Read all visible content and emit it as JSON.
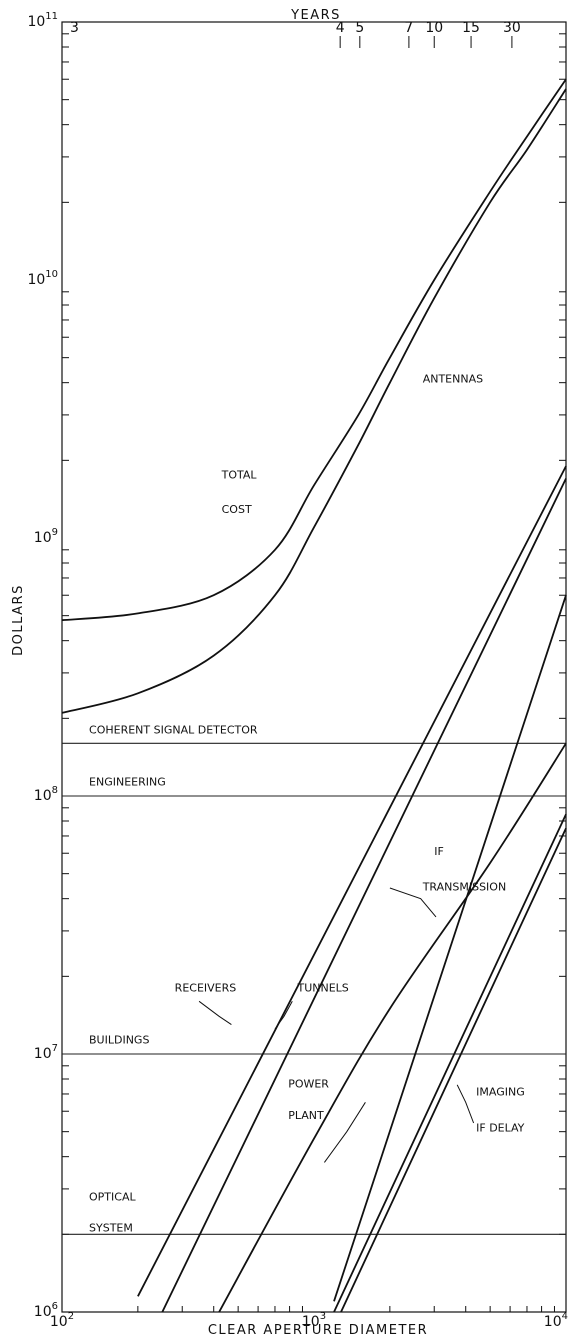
{
  "chart_data": {
    "type": "line",
    "xlabel": "CLEAR APERTURE DIAMETER",
    "ylabel": "DOLLARS",
    "top_axis_label": "YEARS",
    "x_scale": "log",
    "y_scale": "log",
    "xlim": [
      100,
      10000
    ],
    "ylim": [
      1000000,
      100000000000
    ],
    "grid": false,
    "x_ticks": [
      {
        "value": 100,
        "base": "10",
        "exp": "2"
      },
      {
        "value": 1000,
        "base": "10",
        "exp": "3"
      },
      {
        "value": 10000,
        "base": "10",
        "exp": "4"
      }
    ],
    "y_ticks": [
      {
        "value": 1000000,
        "base": "10",
        "exp": "6"
      },
      {
        "value": 10000000,
        "base": "10",
        "exp": "7"
      },
      {
        "value": 100000000,
        "base": "10",
        "exp": "8"
      },
      {
        "value": 1000000000,
        "base": "10",
        "exp": "9"
      },
      {
        "value": 10000000000,
        "base": "10",
        "exp": "10"
      },
      {
        "value": 100000000000,
        "base": "10",
        "exp": "11"
      }
    ],
    "top_ticks": [
      {
        "label": "3",
        "x": 100
      },
      {
        "label": "4",
        "x": 1270
      },
      {
        "label": "5",
        "x": 1520
      },
      {
        "label": "7",
        "x": 2380
      },
      {
        "label": "10",
        "x": 3000
      },
      {
        "label": "15",
        "x": 4200
      },
      {
        "label": "30",
        "x": 6100
      }
    ],
    "series": [
      {
        "name": "TOTAL COST",
        "points": [
          [
            100,
            480000000
          ],
          [
            200,
            510000000
          ],
          [
            400,
            600000000
          ],
          [
            700,
            900000000
          ],
          [
            1000,
            1600000000
          ],
          [
            1500,
            3000000000
          ],
          [
            2000,
            5000000000
          ],
          [
            3000,
            10000000000
          ],
          [
            5000,
            22000000000
          ],
          [
            7000,
            36000000000
          ],
          [
            10000,
            60000000000
          ]
        ]
      },
      {
        "name": "ANTENNAS",
        "points": [
          [
            100,
            210000000
          ],
          [
            200,
            250000000
          ],
          [
            400,
            350000000
          ],
          [
            700,
            600000000
          ],
          [
            1000,
            1100000000
          ],
          [
            1500,
            2300000000
          ],
          [
            2000,
            4000000000
          ],
          [
            3000,
            8500000000
          ],
          [
            5000,
            20000000000
          ],
          [
            7000,
            32000000000
          ],
          [
            10000,
            55000000000
          ]
        ]
      },
      {
        "name": "RECEIVERS",
        "points": [
          [
            200,
            1150000
          ],
          [
            10000,
            1900000000
          ]
        ]
      },
      {
        "name": "TUNNELS",
        "points": [
          [
            250,
            1000000
          ],
          [
            10000,
            1700000000
          ]
        ]
      },
      {
        "name": "POWER PLANT",
        "points": [
          [
            420,
            1000000
          ],
          [
            1000,
            4700000
          ],
          [
            2000,
            15000000
          ],
          [
            5000,
            55000000
          ],
          [
            10000,
            160000000
          ]
        ]
      },
      {
        "name": "IF TRANSMISSION",
        "points": [
          [
            1200,
            1100000
          ],
          [
            10000,
            600000000
          ]
        ]
      },
      {
        "name": "IMAGING",
        "points": [
          [
            1200,
            1000000
          ],
          [
            10000,
            85000000
          ]
        ]
      },
      {
        "name": "IF DELAY",
        "points": [
          [
            1280,
            1000000
          ],
          [
            10000,
            75000000
          ]
        ]
      }
    ],
    "constant_lines": [
      {
        "name": "COHERENT SIGNAL DETECTOR",
        "y": 160000000
      },
      {
        "name": "ENGINEERING",
        "y": 100000000
      },
      {
        "name": "BUILDINGS",
        "y": 10000000
      },
      {
        "name": "OPTICAL SYSTEM",
        "y": 2000000
      }
    ],
    "annotations": [
      {
        "text": "TOTAL",
        "x": 430,
        "y": 1700000000
      },
      {
        "text": "COST",
        "x": 430,
        "y": 1250000000
      },
      {
        "text": "ANTENNAS",
        "x": 2700,
        "y": 4000000000
      },
      {
        "text": "COHERENT SIGNAL DETECTOR",
        "x": 128,
        "y": 175000000
      },
      {
        "text": "ENGINEERING",
        "x": 128,
        "y": 110000000
      },
      {
        "text": "IF",
        "x": 3000,
        "y": 59000000
      },
      {
        "text": "TRANSMISSION",
        "x": 2700,
        "y": 43000000
      },
      {
        "text": "RECEIVERS",
        "x": 280,
        "y": 17500000
      },
      {
        "text": "TUNNELS",
        "x": 860,
        "y": 17500000
      },
      {
        "text": "BUILDINGS",
        "x": 128,
        "y": 11000000
      },
      {
        "text": "POWER",
        "x": 790,
        "y": 7400000
      },
      {
        "text": "PLANT",
        "x": 790,
        "y": 5600000
      },
      {
        "text": "IMAGING",
        "x": 4400,
        "y": 6900000
      },
      {
        "text": "IF DELAY",
        "x": 4400,
        "y": 5000000
      },
      {
        "text": "OPTICAL",
        "x": 128,
        "y": 2700000
      },
      {
        "text": "SYSTEM",
        "x": 128,
        "y": 2050000
      }
    ]
  }
}
